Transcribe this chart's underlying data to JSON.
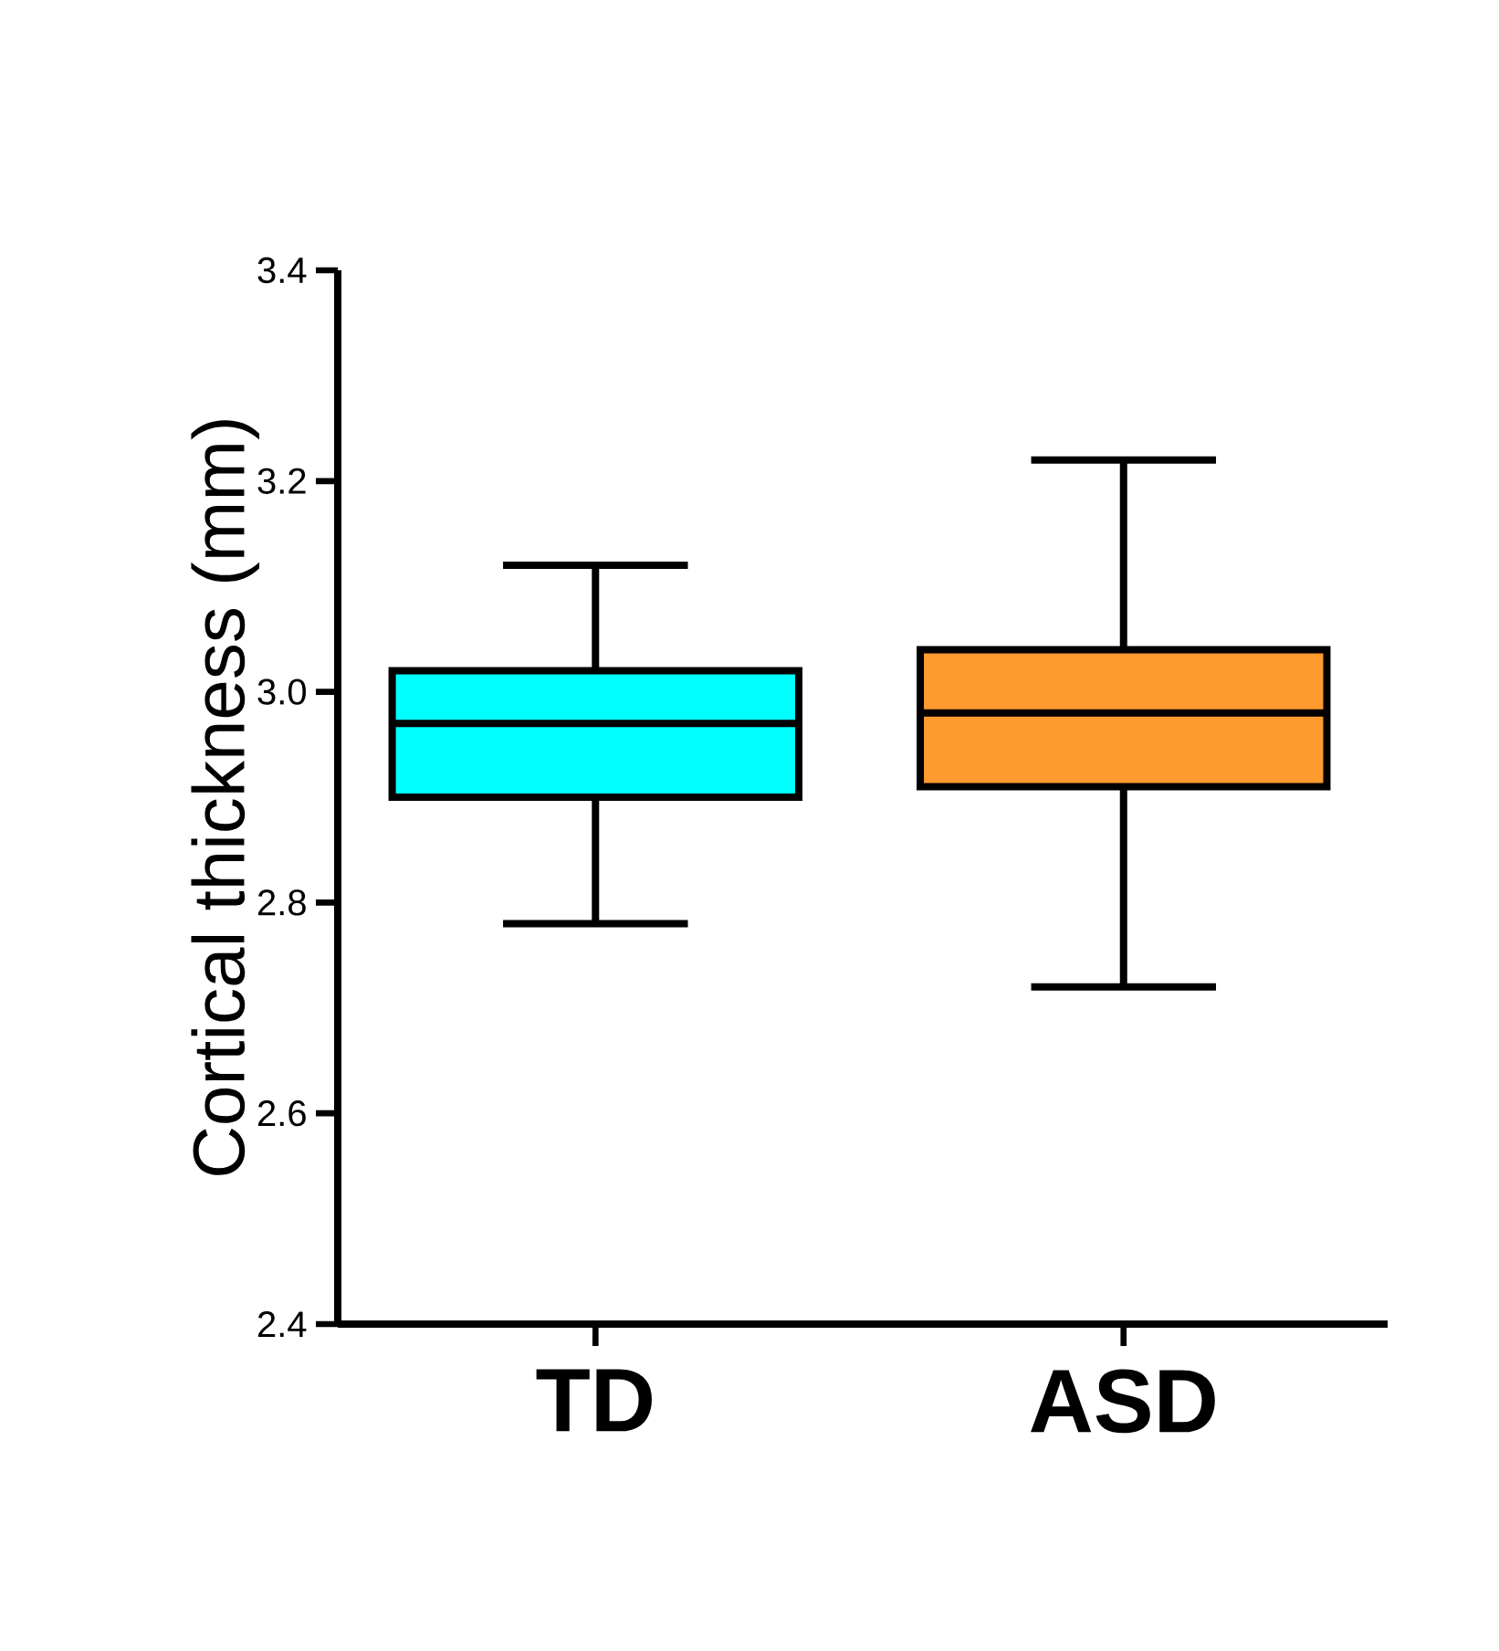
{
  "chart_data": {
    "type": "box",
    "ylabel": "Cortical thickness (mm)",
    "categories": [
      "TD",
      "ASD"
    ],
    "colors": [
      "#00ffff",
      "#ff9a2e"
    ],
    "boxes": [
      {
        "low": 2.78,
        "q1": 2.9,
        "median": 2.97,
        "q3": 3.02,
        "high": 3.12
      },
      {
        "low": 2.72,
        "q1": 2.91,
        "median": 2.98,
        "q3": 3.04,
        "high": 3.22
      }
    ],
    "ylim": [
      2.4,
      3.4
    ],
    "yticks": [
      2.4,
      2.6,
      2.8,
      {
        "value": 3.0,
        "label": "3.0"
      },
      3.2,
      3.4
    ]
  }
}
